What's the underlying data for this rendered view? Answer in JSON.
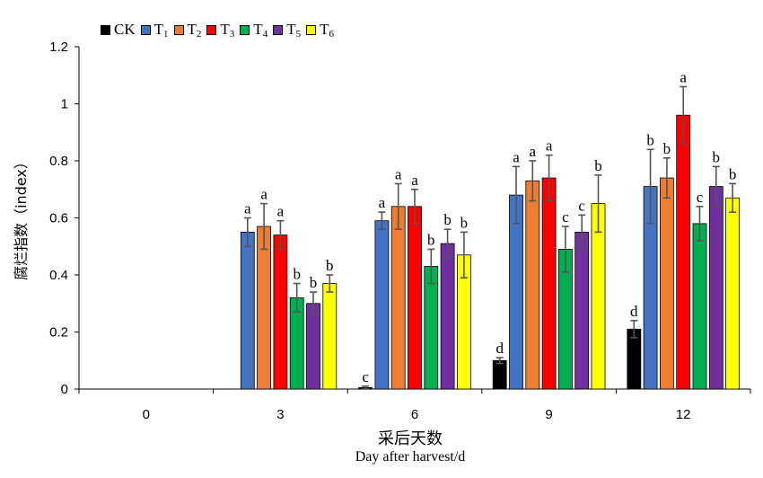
{
  "chart_data": {
    "type": "bar",
    "categories": [
      "0",
      "3",
      "6",
      "9",
      "12"
    ],
    "ylim": [
      0,
      1.2
    ],
    "yticks": [
      "0",
      "0.2",
      "0.4",
      "0.6",
      "0.8",
      "1",
      "1.2"
    ],
    "ylabel": "腐烂指数（index）",
    "xlabel_cn": "采后天数",
    "xlabel_en": "Day after harvest/d",
    "grid": false,
    "legend_position": "top-left",
    "series": [
      {
        "name": "CK",
        "base": "CK",
        "sub": "",
        "color": "#000000",
        "values": [
          null,
          null,
          0.005,
          0.1,
          0.21
        ],
        "errors": [
          null,
          null,
          0.005,
          0.01,
          0.03
        ],
        "labels": [
          "",
          "",
          "c",
          "d",
          "d"
        ]
      },
      {
        "name": "T1",
        "base": "T",
        "sub": "1",
        "color": "#4472C4",
        "values": [
          null,
          0.55,
          0.59,
          0.68,
          0.71
        ],
        "errors": [
          null,
          0.05,
          0.03,
          0.1,
          0.13
        ],
        "labels": [
          "",
          "a",
          "a",
          "a",
          "b"
        ]
      },
      {
        "name": "T2",
        "base": "T",
        "sub": "2",
        "color": "#ED7D31",
        "values": [
          null,
          0.57,
          0.64,
          0.73,
          0.74
        ],
        "errors": [
          null,
          0.08,
          0.08,
          0.07,
          0.07
        ],
        "labels": [
          "",
          "a",
          "a",
          "a",
          "b"
        ]
      },
      {
        "name": "T3",
        "base": "T",
        "sub": "3",
        "color": "#FF0000",
        "values": [
          null,
          0.54,
          0.64,
          0.74,
          0.96
        ],
        "errors": [
          null,
          0.05,
          0.06,
          0.08,
          0.1
        ],
        "labels": [
          "",
          "a",
          "a",
          "a",
          "a"
        ]
      },
      {
        "name": "T4",
        "base": "T",
        "sub": "4",
        "color": "#00B050",
        "values": [
          null,
          0.32,
          0.43,
          0.49,
          0.58
        ],
        "errors": [
          null,
          0.05,
          0.06,
          0.08,
          0.06
        ],
        "labels": [
          "",
          "b",
          "b",
          "c",
          "c"
        ]
      },
      {
        "name": "T5",
        "base": "T",
        "sub": "5",
        "color": "#7030A0",
        "values": [
          null,
          0.3,
          0.51,
          0.55,
          0.71
        ],
        "errors": [
          null,
          0.04,
          0.05,
          0.06,
          0.07
        ],
        "labels": [
          "",
          "b",
          "b",
          "c",
          "b"
        ]
      },
      {
        "name": "T6",
        "base": "T",
        "sub": "6",
        "color": "#FFFF00",
        "values": [
          null,
          0.37,
          0.47,
          0.65,
          0.67
        ],
        "errors": [
          null,
          0.03,
          0.08,
          0.1,
          0.05
        ],
        "labels": [
          "",
          "b",
          "b",
          "b",
          "b"
        ]
      }
    ]
  }
}
